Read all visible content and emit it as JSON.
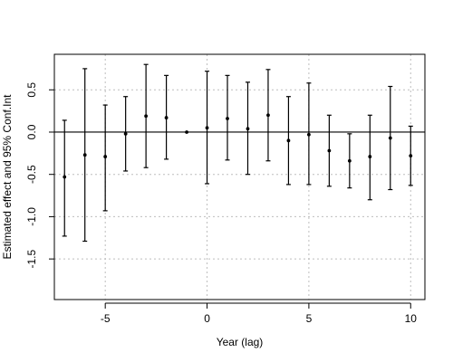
{
  "chart_data": {
    "type": "scatter",
    "xlabel": "Year (lag)",
    "ylabel": "Estimated effect and 95% Conf.Int",
    "xlim": [
      -7.5,
      10.7
    ],
    "ylim": [
      -1.98,
      0.92
    ],
    "x_ticks": [
      -5,
      0,
      5,
      10
    ],
    "x_tick_labels": [
      "-5",
      "0",
      "5",
      "10"
    ],
    "y_ticks": [
      -1.5,
      -1.0,
      -0.5,
      0.0,
      0.5
    ],
    "y_tick_labels": [
      "-1.5",
      "-1.0",
      "-0.5",
      "0.0",
      "0.5"
    ],
    "grid": true,
    "reference_line_y": 0,
    "series": [
      {
        "points": [
          {
            "x": -7,
            "y": -0.53,
            "lower": -1.23,
            "upper": 0.14
          },
          {
            "x": -6,
            "y": -0.27,
            "lower": -1.29,
            "upper": 0.75
          },
          {
            "x": -5,
            "y": -0.29,
            "lower": -0.93,
            "upper": 0.32
          },
          {
            "x": -4,
            "y": -0.02,
            "lower": -0.46,
            "upper": 0.42
          },
          {
            "x": -3,
            "y": 0.19,
            "lower": -0.42,
            "upper": 0.8
          },
          {
            "x": -2,
            "y": 0.17,
            "lower": -0.32,
            "upper": 0.67
          },
          {
            "x": -1,
            "y": 0.0,
            "lower": 0.0,
            "upper": 0.0
          },
          {
            "x": 0,
            "y": 0.05,
            "lower": -0.61,
            "upper": 0.72
          },
          {
            "x": 1,
            "y": 0.16,
            "lower": -0.33,
            "upper": 0.67
          },
          {
            "x": 2,
            "y": 0.04,
            "lower": -0.5,
            "upper": 0.59
          },
          {
            "x": 3,
            "y": 0.2,
            "lower": -0.34,
            "upper": 0.74
          },
          {
            "x": 4,
            "y": -0.1,
            "lower": -0.62,
            "upper": 0.42
          },
          {
            "x": 5,
            "y": -0.03,
            "lower": -0.62,
            "upper": 0.58
          },
          {
            "x": 6,
            "y": -0.22,
            "lower": -0.64,
            "upper": 0.2
          },
          {
            "x": 7,
            "y": -0.34,
            "lower": -0.66,
            "upper": -0.02
          },
          {
            "x": 8,
            "y": -0.29,
            "lower": -0.8,
            "upper": 0.2
          },
          {
            "x": 9,
            "y": -0.07,
            "lower": -0.68,
            "upper": 0.54
          },
          {
            "x": 10,
            "y": -0.28,
            "lower": -0.63,
            "upper": 0.07
          }
        ]
      }
    ]
  }
}
